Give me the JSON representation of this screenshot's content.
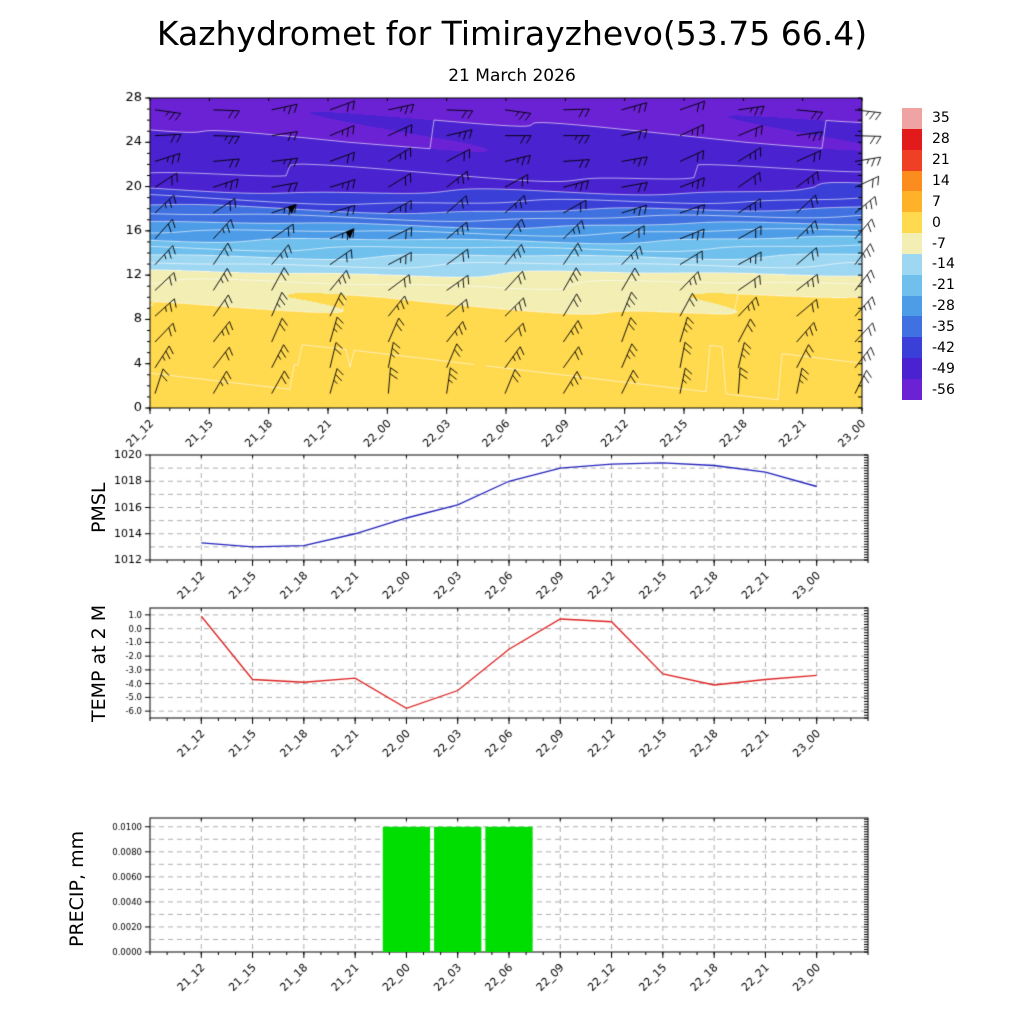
{
  "title": "Kazhydromet for Timirayzhevo(53.75 66.4)",
  "subtitle": "21 March 2026",
  "time_labels": [
    "21_12",
    "21_15",
    "21_18",
    "21_21",
    "22_00",
    "22_03",
    "22_06",
    "22_09",
    "22_12",
    "22_15",
    "22_18",
    "22_21",
    "23_00"
  ],
  "chart_data": [
    {
      "type": "heatmap",
      "name": "upper-air-temperature-cross-section",
      "x": [
        "21_12",
        "21_15",
        "21_18",
        "21_21",
        "22_00",
        "22_03",
        "22_06",
        "22_09",
        "22_12",
        "22_15",
        "22_18",
        "22_21",
        "23_00"
      ],
      "ylim": [
        0,
        28
      ],
      "yticks": [
        0,
        4,
        8,
        12,
        16,
        20,
        24,
        28
      ],
      "ytick_labels": [
        "0",
        "4",
        "8",
        "12",
        "16",
        "20",
        "24",
        "28"
      ],
      "minor_y_step": 1,
      "band_max": 35,
      "band_step": 7,
      "colorbar_levels": [
        "35",
        "28",
        "21",
        "14",
        "7",
        "0",
        "-7",
        "-14",
        "-21",
        "-28",
        "-35",
        "-42",
        "-49",
        "-56"
      ],
      "colorbar_colors": [
        "#f0a3a3",
        "#e31a1c",
        "#ef4026",
        "#fd8c1e",
        "#feb22a",
        "#ffd94e",
        "#f2eeb4",
        "#9ed7f2",
        "#70c0ee",
        "#4d9ce8",
        "#3f72e0",
        "#3a3fd8",
        "#4a22d0",
        "#6a22d4"
      ],
      "temperature_profile": {
        "heights": [
          0,
          4,
          8,
          10,
          11,
          12,
          13,
          14,
          15,
          16,
          17,
          18,
          19,
          20,
          22,
          24,
          28
        ],
        "values": [
          -2.2,
          -4,
          -5.5,
          -6.8,
          -9,
          -13,
          -17.5,
          -22,
          -26.5,
          -31,
          -36,
          -41,
          -45.5,
          -49.5,
          -53.5,
          -55.5,
          -57.5
        ]
      },
      "contour_levels": [
        -3.5,
        -7,
        -10.5,
        -14,
        -17.5,
        -21,
        -24.5,
        -28,
        -31.5,
        -35,
        -38.5,
        -42,
        -45.5,
        -49,
        -52.5,
        -56
      ],
      "wind_barbs": {
        "cols": 13,
        "rows": 12,
        "flags": [
          {
            "col": 2,
            "row": 7
          },
          {
            "col": 3,
            "row": 6
          }
        ]
      }
    },
    {
      "type": "line",
      "name": "pmsl",
      "ylabel": "PMSL",
      "color": "#2222bb",
      "x": [
        "21_12",
        "21_15",
        "21_18",
        "21_21",
        "22_00",
        "22_03",
        "22_06",
        "22_09",
        "22_12",
        "22_15",
        "22_18",
        "22_21",
        "23_00"
      ],
      "values": [
        1013.3,
        1013.0,
        1013.1,
        1014.0,
        1015.2,
        1016.2,
        1018.0,
        1019.0,
        1019.3,
        1019.4,
        1019.2,
        1018.7,
        1017.6
      ],
      "ylim": [
        1012,
        1020
      ],
      "yticks": [
        1012,
        1014,
        1016,
        1018,
        1020
      ],
      "ytick_labels": [
        "1012",
        "1014",
        "1016",
        "1018",
        "1020"
      ],
      "grid_step": 1,
      "minor_y_step": 0.2
    },
    {
      "type": "line",
      "name": "temp-2m",
      "ylabel": "TEMP at 2 M",
      "color": "#dd2222",
      "x": [
        "21_12",
        "21_15",
        "21_18",
        "21_21",
        "22_00",
        "22_03",
        "22_06",
        "22_09",
        "22_12",
        "22_15",
        "22_18",
        "22_21",
        "23_00"
      ],
      "values": [
        0.9,
        -3.7,
        -3.9,
        -3.6,
        -5.8,
        -4.5,
        -1.5,
        0.7,
        0.5,
        -3.3,
        -4.1,
        -3.7,
        -3.4
      ],
      "ylim": [
        -6.5,
        1.5
      ],
      "yticks": [
        -6,
        -5,
        -4,
        -3,
        -2,
        -1,
        0,
        1
      ],
      "ytick_labels": [
        "-6.0",
        "-5.0",
        "-4.0",
        "-3.0",
        "-2.0",
        "-1.0",
        "0.0",
        "1.0"
      ],
      "grid_step": 1,
      "minor_y_step": 0.2
    },
    {
      "type": "bar",
      "name": "precip",
      "ylabel": "PRECIP, mm",
      "color": "#00dd00",
      "x": [
        "21_12",
        "21_15",
        "21_18",
        "21_21",
        "22_00",
        "22_03",
        "22_06",
        "22_09",
        "22_12",
        "22_15",
        "22_18",
        "22_21",
        "23_00"
      ],
      "values": [
        0,
        0,
        0,
        0,
        0.01,
        0.01,
        0.01,
        0,
        0,
        0,
        0,
        0,
        0
      ],
      "ylim": [
        0,
        0.0107
      ],
      "yticks": [
        0,
        0.002,
        0.004,
        0.006,
        0.008,
        0.01
      ],
      "ytick_labels": [
        "0.0000",
        "0.0020",
        "0.0040",
        "0.0060",
        "0.0080",
        "0.0100"
      ],
      "grid_step": 0.001,
      "minor_y_step": 0.0002
    }
  ]
}
